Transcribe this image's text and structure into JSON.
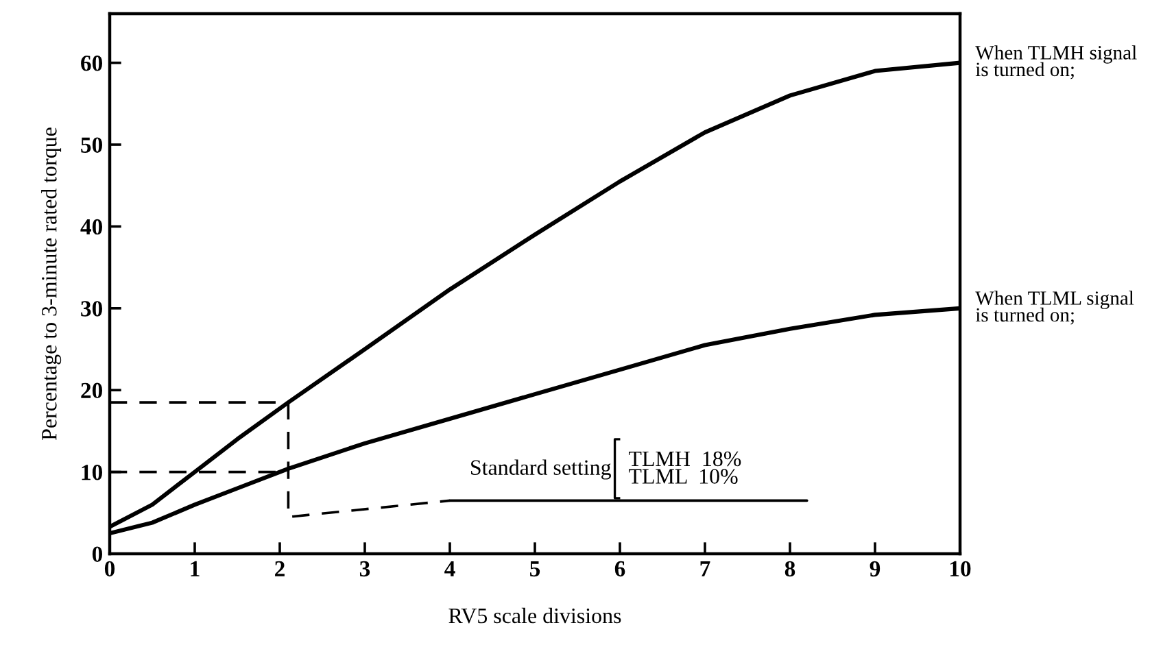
{
  "chart_data": {
    "type": "line",
    "xlabel": "RV5 scale divisions",
    "ylabel": "Percentage to 3-minute rated torque",
    "xlim": [
      0,
      10
    ],
    "ylim": [
      0,
      66
    ],
    "xticks": [
      0,
      1,
      2,
      3,
      4,
      5,
      6,
      7,
      8,
      9,
      10
    ],
    "yticks": [
      0,
      10,
      20,
      30,
      40,
      50,
      60
    ],
    "grid": false,
    "legend": false,
    "marker": "none",
    "series": [
      {
        "name": "When TLMH signal\nis turned on;",
        "color": "#000000",
        "line_style": "solid",
        "x": [
          0,
          0.5,
          1,
          1.5,
          2.1,
          3,
          4,
          5,
          6,
          7,
          8,
          9,
          10
        ],
        "values": [
          3.3,
          6,
          10,
          14,
          18.5,
          25,
          32.3,
          39,
          45.5,
          51.5,
          56,
          59,
          60
        ]
      },
      {
        "name": "When TLML signal\nis turned on;",
        "color": "#000000",
        "line_style": "solid",
        "x": [
          0,
          0.5,
          1,
          1.5,
          2.1,
          3,
          4,
          5,
          6,
          7,
          8,
          9,
          10
        ],
        "values": [
          2.5,
          3.8,
          6,
          8,
          10.4,
          13.5,
          16.5,
          19.5,
          22.5,
          25.5,
          27.5,
          29.2,
          30
        ]
      },
      {
        "color": "#000000",
        "line_style": "dashed",
        "x": [
          0,
          2.1,
          2.1,
          4
        ],
        "values": [
          18.5,
          18.5,
          4.5,
          6.5
        ]
      },
      {
        "color": "#000000",
        "line_style": "dashed",
        "x": [
          0,
          2.1
        ],
        "values": [
          10,
          10
        ]
      },
      {
        "color": "#000000",
        "line_style": "solid",
        "x": [
          4,
          8.2
        ],
        "values": [
          6.5,
          6.5
        ]
      }
    ],
    "annotations": [
      "Standard setting",
      "TLMH  18%\nTLML  10%"
    ]
  }
}
